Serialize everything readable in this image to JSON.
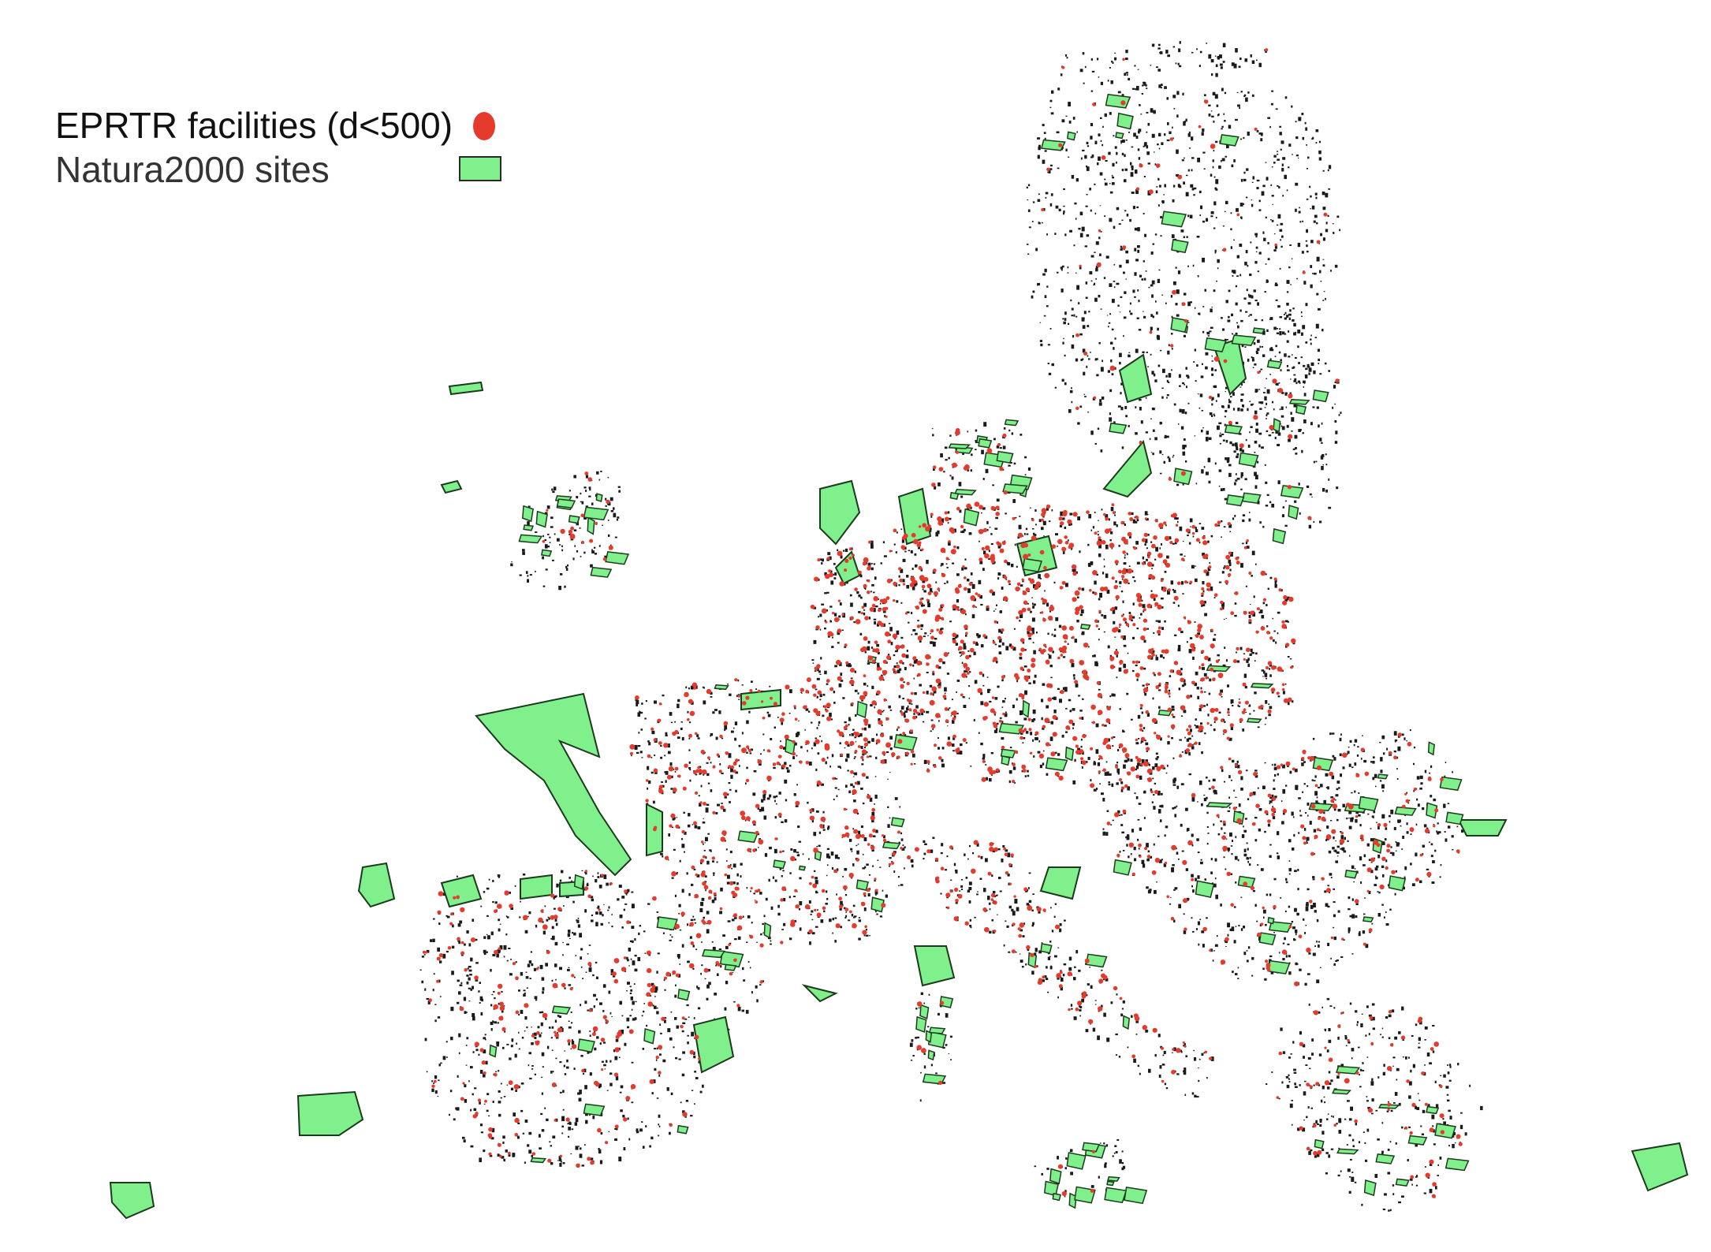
{
  "legend": {
    "facilities_label": "EPRTR facilities (d<500)",
    "sites_label": "Natura2000 sites",
    "facilities_icon": "red-dot-icon",
    "sites_icon": "green-rectangle-icon"
  },
  "colors": {
    "facility": "#e53b2c",
    "site_fill": "#7ff08c",
    "site_stroke": "#1c3a1c",
    "outline": "#1a1a1a",
    "background": "#ffffff"
  }
}
